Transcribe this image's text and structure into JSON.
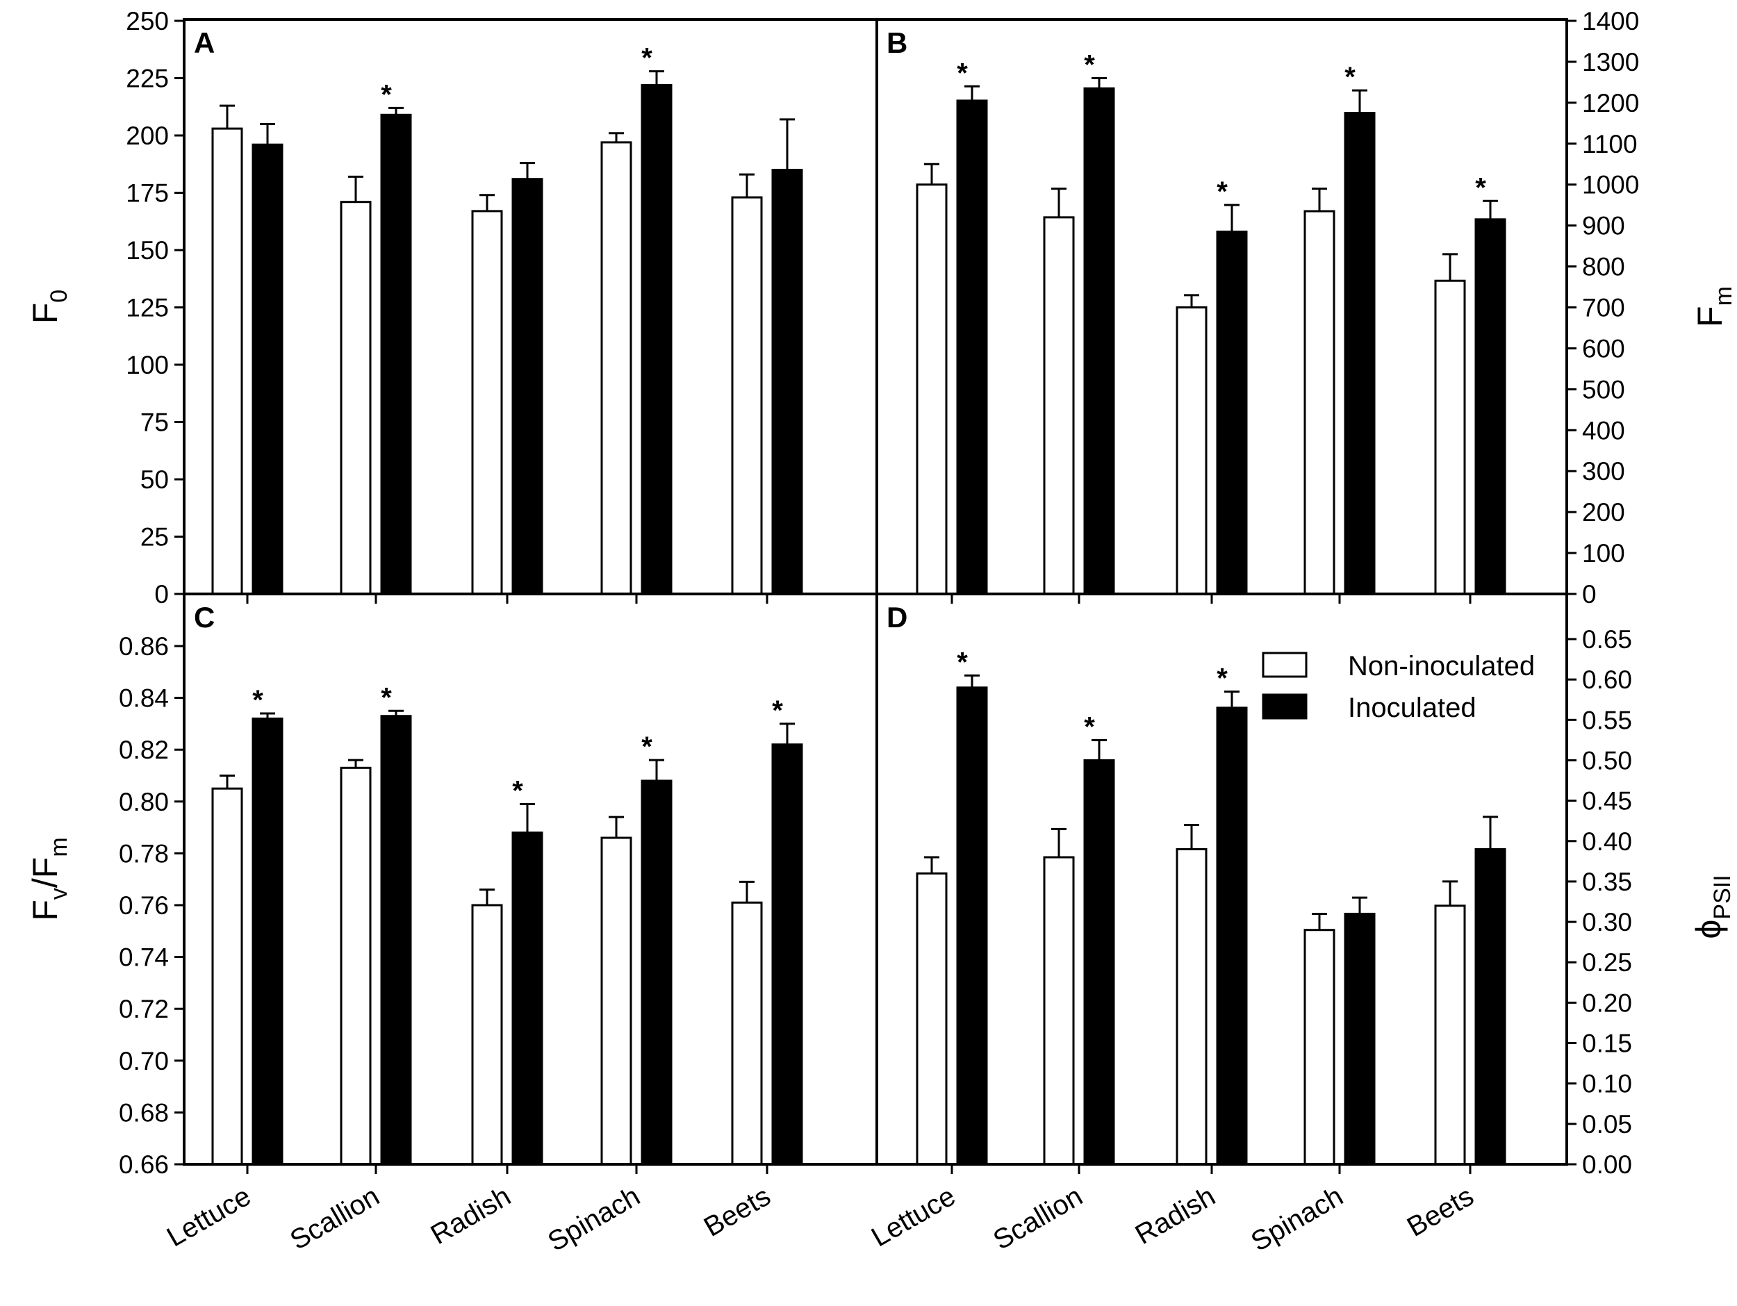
{
  "chart_data": {
    "type": "bar",
    "categories": [
      "Lettuce",
      "Scallion",
      "Radish",
      "Spinach",
      "Beets"
    ],
    "series_names": [
      "Non-inoculated",
      "Inoculated"
    ],
    "legend": {
      "entries": [
        "Non-inoculated",
        "Inoculated"
      ],
      "location": "panel D, top-right"
    },
    "panels": [
      {
        "id": "A",
        "label": "A",
        "ylabel": "F",
        "ylabel_sub": "0",
        "y_side": "left",
        "ylim": [
          0,
          250
        ],
        "yticks": [
          0,
          25,
          50,
          75,
          100,
          125,
          150,
          175,
          200,
          225,
          250
        ],
        "ytick_labels": [
          "0",
          "25",
          "50",
          "75",
          "100",
          "125",
          "150",
          "175",
          "200",
          "225",
          "250"
        ],
        "series": [
          {
            "name": "Non-inoculated",
            "values": [
              203,
              171,
              167,
              197,
              173
            ],
            "errors": [
              10,
              11,
              7,
              4,
              10
            ]
          },
          {
            "name": "Inoculated",
            "values": [
              196,
              209,
              181,
              222,
              185
            ],
            "errors": [
              9,
              3,
              7,
              6,
              22
            ]
          }
        ],
        "significant": [
          false,
          true,
          false,
          true,
          false
        ],
        "significance_marker": "*"
      },
      {
        "id": "B",
        "label": "B",
        "ylabel": "F",
        "ylabel_sub": "m",
        "y_side": "right",
        "ylim": [
          0,
          1400
        ],
        "yticks": [
          0,
          100,
          200,
          300,
          400,
          500,
          600,
          700,
          800,
          900,
          1000,
          1100,
          1200,
          1300,
          1400
        ],
        "ytick_labels": [
          "0",
          "100",
          "200",
          "300",
          "400",
          "500",
          "600",
          "700",
          "800",
          "900",
          "1000",
          "1100",
          "1200",
          "1300",
          "1400"
        ],
        "series": [
          {
            "name": "Non-inoculated",
            "values": [
              1000,
              920,
              700,
              935,
              765
            ],
            "errors": [
              50,
              70,
              30,
              55,
              65
            ]
          },
          {
            "name": "Inoculated",
            "values": [
              1205,
              1235,
              885,
              1175,
              915
            ],
            "errors": [
              35,
              25,
              65,
              55,
              45
            ]
          }
        ],
        "significant": [
          true,
          true,
          true,
          true,
          true
        ],
        "significance_marker": "*"
      },
      {
        "id": "C",
        "label": "C",
        "ylabel": "F",
        "ylabel_sub": "v",
        "ylabel_mid": "/F",
        "ylabel_sub2": "m",
        "y_side": "left",
        "ylim": [
          0.66,
          0.87
        ],
        "yticks": [
          0.66,
          0.68,
          0.7,
          0.72,
          0.74,
          0.76,
          0.78,
          0.8,
          0.82,
          0.84,
          0.86
        ],
        "ytick_labels": [
          "0.66",
          "0.68",
          "0.70",
          "0.72",
          "0.74",
          "0.76",
          "0.78",
          "0.80",
          "0.82",
          "0.84",
          "0.86"
        ],
        "series": [
          {
            "name": "Non-inoculated",
            "values": [
              0.805,
              0.813,
              0.76,
              0.786,
              0.761
            ],
            "errors": [
              0.005,
              0.003,
              0.006,
              0.008,
              0.008
            ]
          },
          {
            "name": "Inoculated",
            "values": [
              0.832,
              0.833,
              0.788,
              0.808,
              0.822
            ],
            "errors": [
              0.002,
              0.002,
              0.011,
              0.008,
              0.008
            ]
          }
        ],
        "significant": [
          true,
          true,
          true,
          true,
          true
        ],
        "significance_marker": "*"
      },
      {
        "id": "D",
        "label": "D",
        "ylabel": "ϕ",
        "ylabel_sub": "PSII",
        "y_side": "right",
        "ylim": [
          0,
          0.7
        ],
        "yticks": [
          0,
          0.05,
          0.1,
          0.15,
          0.2,
          0.25,
          0.3,
          0.35,
          0.4,
          0.45,
          0.5,
          0.55,
          0.6,
          0.65
        ],
        "ytick_labels": [
          "0.00",
          "0.05",
          "0.10",
          "0.15",
          "0.20",
          "0.25",
          "0.30",
          "0.35",
          "0.40",
          "0.45",
          "0.50",
          "0.55",
          "0.60",
          "0.65"
        ],
        "series": [
          {
            "name": "Non-inoculated",
            "values": [
              0.36,
              0.38,
              0.39,
              0.29,
              0.32
            ],
            "errors": [
              0.02,
              0.035,
              0.03,
              0.02,
              0.03
            ]
          },
          {
            "name": "Inoculated",
            "values": [
              0.59,
              0.5,
              0.565,
              0.31,
              0.39
            ],
            "errors": [
              0.015,
              0.025,
              0.02,
              0.02,
              0.04
            ]
          }
        ],
        "significant": [
          true,
          true,
          true,
          false,
          false
        ],
        "significance_marker": "*"
      }
    ]
  }
}
